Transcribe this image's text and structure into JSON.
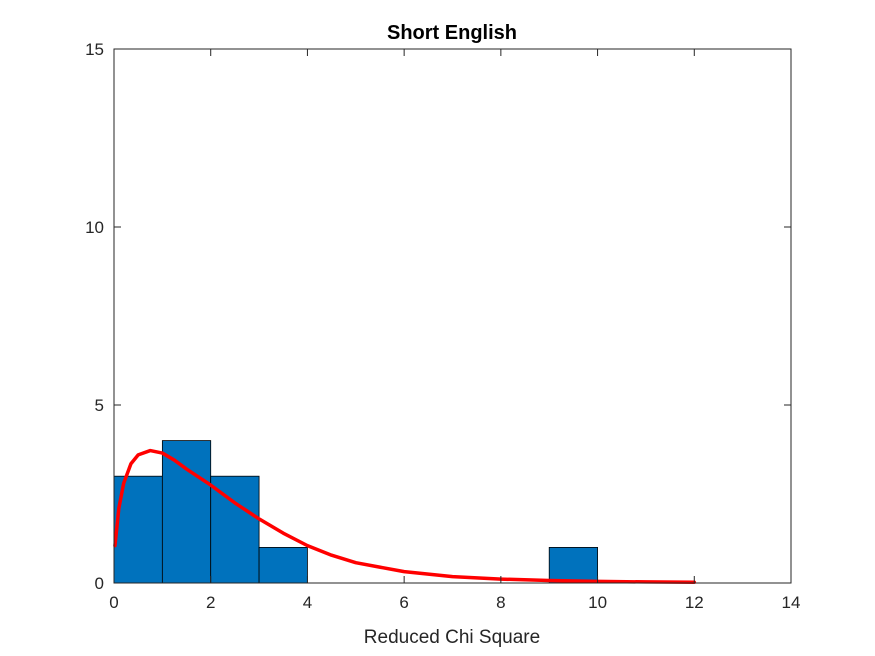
{
  "chart_data": {
    "type": "bar",
    "title": "Short English",
    "xlabel": "Reduced Chi Square",
    "ylabel": "",
    "xlim": [
      0,
      14
    ],
    "ylim": [
      0,
      15
    ],
    "xticks": [
      0,
      2,
      4,
      6,
      8,
      10,
      12,
      14
    ],
    "yticks": [
      0,
      5,
      10,
      15
    ],
    "grid": false,
    "histogram": {
      "bin_edges": [
        0,
        1,
        2,
        3,
        4,
        5,
        6,
        7,
        8,
        9,
        10
      ],
      "counts": [
        3,
        4,
        3,
        1,
        0,
        0,
        0,
        0,
        0,
        1
      ],
      "color": "#0072BD"
    },
    "fit_curve": {
      "color": "#FF0000",
      "x": [
        0.02,
        0.1,
        0.2,
        0.35,
        0.5,
        0.75,
        1.0,
        1.25,
        1.5,
        2.0,
        2.5,
        3.0,
        3.5,
        4.0,
        4.5,
        5.0,
        6.0,
        7.0,
        8.0,
        9.0,
        10.0,
        11.0,
        12.0
      ],
      "y": [
        1.05,
        2.1,
        2.8,
        3.35,
        3.6,
        3.72,
        3.65,
        3.45,
        3.2,
        2.75,
        2.25,
        1.8,
        1.4,
        1.05,
        0.78,
        0.57,
        0.32,
        0.18,
        0.11,
        0.07,
        0.045,
        0.03,
        0.02
      ]
    }
  }
}
